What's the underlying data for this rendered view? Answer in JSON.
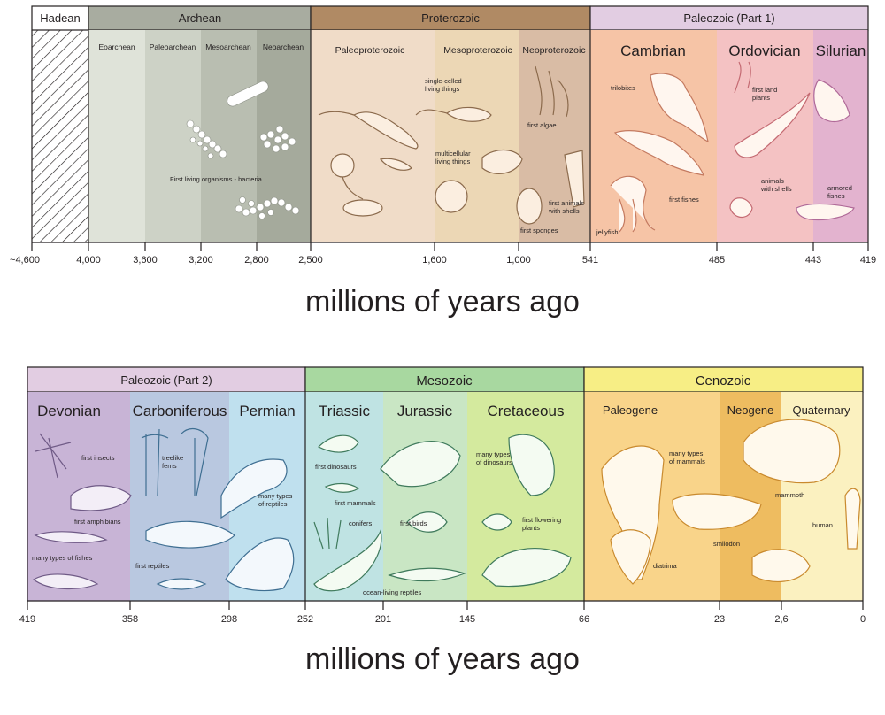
{
  "top": {
    "eons": [
      {
        "label": "Hadean",
        "color": "#ffffff"
      },
      {
        "label": "Archean",
        "color": "#a8aca0"
      },
      {
        "label": "Proterozoic",
        "color": "#b08a64"
      },
      {
        "label": "Paleozoic (Part 1)",
        "color": "#e2cde2"
      }
    ],
    "subdivisions": [
      {
        "label": "Eoarchean",
        "color": "#dfe3d9"
      },
      {
        "label": "Paleoarchean",
        "color": "#cdd2c6"
      },
      {
        "label": "Mesoarchean",
        "color": "#b9beb1"
      },
      {
        "label": "Neoarchean",
        "color": "#a5aa9c"
      },
      {
        "label": "Paleoproterozoic",
        "color": "#f0dcc8"
      },
      {
        "label": "Mesoproterozoic",
        "color": "#ecd7b5"
      },
      {
        "label": "Neoproterozoic",
        "color": "#d9bca5"
      },
      {
        "label": "Cambrian",
        "color": "#f6c4a6"
      },
      {
        "label": "Ordovician",
        "color": "#f4c2c3"
      },
      {
        "label": "Silurian",
        "color": "#e3b3cf"
      }
    ],
    "annotations": [
      "First living organisms - bacteria",
      "single-celled\nliving things",
      "first algae",
      "multicellular\nliving things",
      "first animals\nwith shells",
      "first sponges",
      "trilobites",
      "first fishes",
      "jellyfish",
      "first land\nplants",
      "animals\nwith shells",
      "armored\nfishes"
    ],
    "ticks": [
      "~4,600",
      "4,000",
      "3,600",
      "3,200",
      "2,800",
      "2,500",
      "1,600",
      "1,000",
      "541",
      "485",
      "443",
      "419"
    ],
    "caption": "millions of years ago"
  },
  "bottom": {
    "eras": [
      {
        "label": "Paleozoic  (Part 2)",
        "color": "#e2cde2"
      },
      {
        "label": "Mesozoic",
        "color": "#a8d8a0"
      },
      {
        "label": "Cenozoic",
        "color": "#f7ee85"
      }
    ],
    "periods": [
      {
        "label": "Devonian",
        "color": "#c8b4d6"
      },
      {
        "label": "Carboniferous",
        "color": "#b9c8e0"
      },
      {
        "label": "Permian",
        "color": "#bfe0ee"
      },
      {
        "label": "Triassic",
        "color": "#bfe3e3"
      },
      {
        "label": "Jurassic",
        "color": "#c9e6c4"
      },
      {
        "label": "Cretaceous",
        "color": "#d4ea9e"
      },
      {
        "label": "Paleogene",
        "color": "#f9d48a"
      },
      {
        "label": "Neogene",
        "color": "#eebc60"
      },
      {
        "label": "Quaternary",
        "color": "#fbf1c0"
      }
    ],
    "annotations": [
      "first insects",
      "first amphibians",
      "many types of fishes",
      "treelike\nferns",
      "first reptiles",
      "many types\nof reptiles",
      "first dinosaurs",
      "first mammals",
      "conifers",
      "ocean-living reptiles",
      "first birds",
      "many types\nof dinosaurs",
      "first flowering\nplants",
      "many types\nof mammals",
      "mammoth",
      "smilodon",
      "diatrima",
      "human"
    ],
    "ticks": [
      "419",
      "358",
      "298",
      "252",
      "201",
      "145",
      "66",
      "23",
      "2,6",
      "0"
    ],
    "caption": "millions of years ago"
  }
}
